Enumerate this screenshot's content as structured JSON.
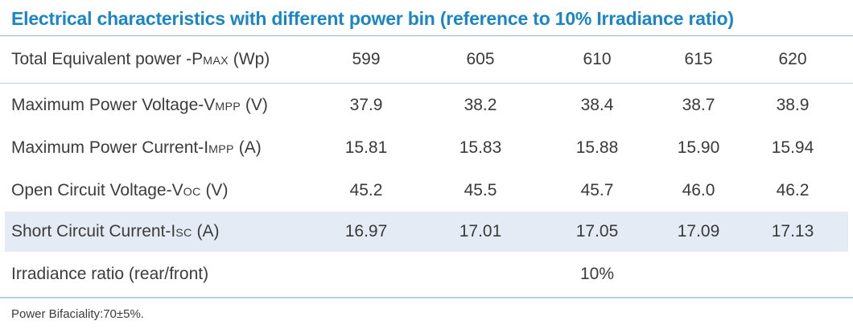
{
  "title": "Electrical characteristics with different power bin (reference to 10% Irradiance ratio)",
  "table": {
    "rows": [
      {
        "label": {
          "prefix": "Total Equivalent power -P",
          "sub": "MAX",
          "suffix": " (Wp)"
        },
        "values": [
          "599",
          "605",
          "610",
          "615",
          "620"
        ]
      },
      {
        "label": {
          "prefix": "Maximum Power Voltage-V",
          "sub": "MPP",
          "suffix": " (V)"
        },
        "values": [
          "37.9",
          "38.2",
          "38.4",
          "38.7",
          "38.9"
        ]
      },
      {
        "label": {
          "prefix": "Maximum Power Current-I",
          "sub": "MPP",
          "suffix": " (A)"
        },
        "values": [
          "15.81",
          "15.83",
          "15.88",
          "15.90",
          "15.94"
        ]
      },
      {
        "label": {
          "prefix": "Open Circuit Voltage-V",
          "sub": "OC",
          "suffix": " (V)"
        },
        "values": [
          "45.2",
          "45.5",
          "45.7",
          "46.0",
          "46.2"
        ]
      },
      {
        "label": {
          "prefix": "Short Circuit Current-I",
          "sub": "SC",
          "suffix": " (A)"
        },
        "values": [
          "16.97",
          "17.01",
          "17.05",
          "17.09",
          "17.13"
        ],
        "highlighted": true
      },
      {
        "label": {
          "prefix": "Irradiance ratio (rear/front)",
          "sub": "",
          "suffix": ""
        },
        "values": [
          "",
          "",
          "10%",
          "",
          ""
        ]
      }
    ]
  },
  "footnote": "Power Bifaciality:70±5%.",
  "colors": {
    "title_blue": "#1a86c6",
    "body_text": "#3c3c3c",
    "highlight_row_bg": "#e5ebf5",
    "title_divider": "#9fb9cb",
    "row_divider": "#b8d4e6",
    "bottom_divider": "#b3cfe2"
  }
}
